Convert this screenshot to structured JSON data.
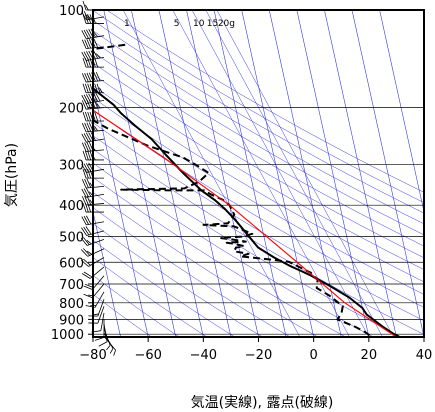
{
  "chart_data": {
    "type": "line",
    "title": "",
    "xlabel": "気温(実線), 露点(破線)",
    "ylabel": "気圧(hPa)",
    "xlim": [
      -80,
      40
    ],
    "ylim": [
      1020,
      100
    ],
    "y_scale": "log",
    "grid": true,
    "x_ticks": [
      "−80",
      "−60",
      "−40",
      "−20",
      "0",
      "20",
      "40"
    ],
    "y_ticks": [
      "100",
      "200",
      "300",
      "400",
      "500",
      "600",
      "700",
      "800",
      "900",
      "1000"
    ],
    "x_tick_values": [
      -80,
      -60,
      -40,
      -20,
      0,
      20,
      40
    ],
    "y_tick_values": [
      100,
      200,
      300,
      400,
      500,
      600,
      700,
      800,
      900,
      1000
    ],
    "mixing_ratio_labels": [
      {
        "text": "1",
        "t": -43
      },
      {
        "text": "5",
        "t": -25
      },
      {
        "text": "10",
        "t": -18
      },
      {
        "text": "15",
        "t": -13
      },
      {
        "text": "20g",
        "t": -9
      }
    ],
    "colors": {
      "background_lines": "#3a3ae6",
      "temperature": "#000000",
      "dewpoint": "#000000",
      "parcel": "#ff0000",
      "grid": "#000000"
    },
    "series": [
      {
        "key": "temperature",
        "style": "solid",
        "points": [
          [
            -65,
            100
          ],
          [
            -68,
            102
          ],
          [
            -70,
            104
          ],
          [
            -71,
            106
          ],
          [
            -72,
            108
          ],
          [
            -71,
            113
          ],
          [
            -71,
            117
          ],
          [
            -70,
            123
          ],
          [
            -69,
            128
          ],
          [
            -68,
            133
          ],
          [
            -68,
            140
          ],
          [
            -65,
            155
          ],
          [
            -62,
            168
          ],
          [
            -58,
            182
          ],
          [
            -54,
            196
          ],
          [
            -52,
            208
          ],
          [
            -48,
            227
          ],
          [
            -43,
            250
          ],
          [
            -39,
            280
          ],
          [
            -34,
            320
          ],
          [
            -29,
            360
          ],
          [
            -25,
            385
          ],
          [
            -22,
            410
          ],
          [
            -19,
            445
          ],
          [
            -16,
            490
          ],
          [
            -13,
            540
          ],
          [
            -8,
            580
          ],
          [
            -3,
            615
          ],
          [
            1,
            640
          ],
          [
            4,
            660
          ],
          [
            10,
            710
          ],
          [
            16,
            770
          ],
          [
            20,
            830
          ],
          [
            21,
            870
          ],
          [
            23,
            900
          ],
          [
            26,
            950
          ],
          [
            29,
            995
          ],
          [
            31,
            1018
          ]
        ]
      },
      {
        "key": "dewpoint",
        "style": "dashed",
        "points": [
          [
            -45,
            128
          ],
          [
            -80,
            140
          ],
          [
            -70,
            160
          ],
          [
            -68,
            205
          ],
          [
            -58,
            232
          ],
          [
            -45,
            262
          ],
          [
            -33,
            285
          ],
          [
            -29,
            300
          ],
          [
            -25,
            318
          ],
          [
            -29,
            338
          ],
          [
            -35,
            355
          ],
          [
            -58,
            358
          ],
          [
            -40,
            360
          ],
          [
            -28,
            360
          ],
          [
            -26,
            370
          ],
          [
            -22,
            385
          ],
          [
            -20,
            400
          ],
          [
            -19,
            428
          ],
          [
            -22,
            455
          ],
          [
            -31,
            460
          ],
          [
            -20,
            465
          ],
          [
            -14,
            490
          ],
          [
            -18,
            500
          ],
          [
            -26,
            505
          ],
          [
            -22,
            510
          ],
          [
            -17,
            518
          ],
          [
            -24,
            522
          ],
          [
            -22,
            525
          ],
          [
            -18,
            535
          ],
          [
            -21,
            540
          ],
          [
            -22,
            555
          ],
          [
            -17,
            565
          ],
          [
            -20,
            575
          ],
          [
            -14,
            583
          ],
          [
            -10,
            588
          ],
          [
            -7,
            592
          ],
          [
            -3,
            598
          ],
          [
            1,
            625
          ],
          [
            4,
            645
          ],
          [
            6,
            680
          ],
          [
            5,
            720
          ],
          [
            9,
            760
          ],
          [
            13,
            820
          ],
          [
            12,
            860
          ],
          [
            10,
            900
          ],
          [
            16,
            950
          ],
          [
            19,
            985
          ],
          [
            21,
            1018
          ]
        ]
      },
      {
        "key": "parcel",
        "style": "solid",
        "points": [
          [
            -80,
            150
          ],
          [
            -60,
            210
          ],
          [
            -40,
            285
          ],
          [
            -20,
            400
          ],
          [
            0,
            600
          ],
          [
            14,
            800
          ],
          [
            30,
            1020
          ]
        ]
      }
    ],
    "wind_barbs": [
      {
        "p": 100,
        "dir": 270,
        "speed": 15
      },
      {
        "p": 105,
        "dir": 260,
        "speed": 25
      },
      {
        "p": 110,
        "dir": 270,
        "speed": 50
      },
      {
        "p": 120,
        "dir": 260,
        "speed": 55
      },
      {
        "p": 130,
        "dir": 265,
        "speed": 60
      },
      {
        "p": 140,
        "dir": 260,
        "speed": 65
      },
      {
        "p": 150,
        "dir": 270,
        "speed": 60
      },
      {
        "p": 165,
        "dir": 265,
        "speed": 70
      },
      {
        "p": 180,
        "dir": 270,
        "speed": 75
      },
      {
        "p": 190,
        "dir": 260,
        "speed": 70
      },
      {
        "p": 200,
        "dir": 265,
        "speed": 65
      },
      {
        "p": 220,
        "dir": 270,
        "speed": 60
      },
      {
        "p": 235,
        "dir": 265,
        "speed": 55
      },
      {
        "p": 250,
        "dir": 260,
        "speed": 50
      },
      {
        "p": 270,
        "dir": 265,
        "speed": 45
      },
      {
        "p": 290,
        "dir": 270,
        "speed": 45
      },
      {
        "p": 310,
        "dir": 260,
        "speed": 40
      },
      {
        "p": 330,
        "dir": 270,
        "speed": 40
      },
      {
        "p": 350,
        "dir": 265,
        "speed": 35
      },
      {
        "p": 370,
        "dir": 260,
        "speed": 35
      },
      {
        "p": 395,
        "dir": 265,
        "speed": 35
      },
      {
        "p": 420,
        "dir": 270,
        "speed": 30
      },
      {
        "p": 450,
        "dir": 260,
        "speed": 30
      },
      {
        "p": 480,
        "dir": 255,
        "speed": 30
      },
      {
        "p": 510,
        "dir": 250,
        "speed": 25
      },
      {
        "p": 545,
        "dir": 245,
        "speed": 25
      },
      {
        "p": 580,
        "dir": 240,
        "speed": 20
      },
      {
        "p": 620,
        "dir": 230,
        "speed": 20
      },
      {
        "p": 660,
        "dir": 220,
        "speed": 20
      },
      {
        "p": 700,
        "dir": 220,
        "speed": 15
      },
      {
        "p": 740,
        "dir": 210,
        "speed": 15
      },
      {
        "p": 780,
        "dir": 200,
        "speed": 15
      },
      {
        "p": 820,
        "dir": 200,
        "speed": 10
      },
      {
        "p": 860,
        "dir": 190,
        "speed": 10
      },
      {
        "p": 900,
        "dir": 180,
        "speed": 10
      },
      {
        "p": 930,
        "dir": 170,
        "speed": 10
      },
      {
        "p": 960,
        "dir": 160,
        "speed": 5
      },
      {
        "p": 990,
        "dir": 150,
        "speed": 5
      },
      {
        "p": 1015,
        "dir": 140,
        "speed": 5
      }
    ]
  }
}
